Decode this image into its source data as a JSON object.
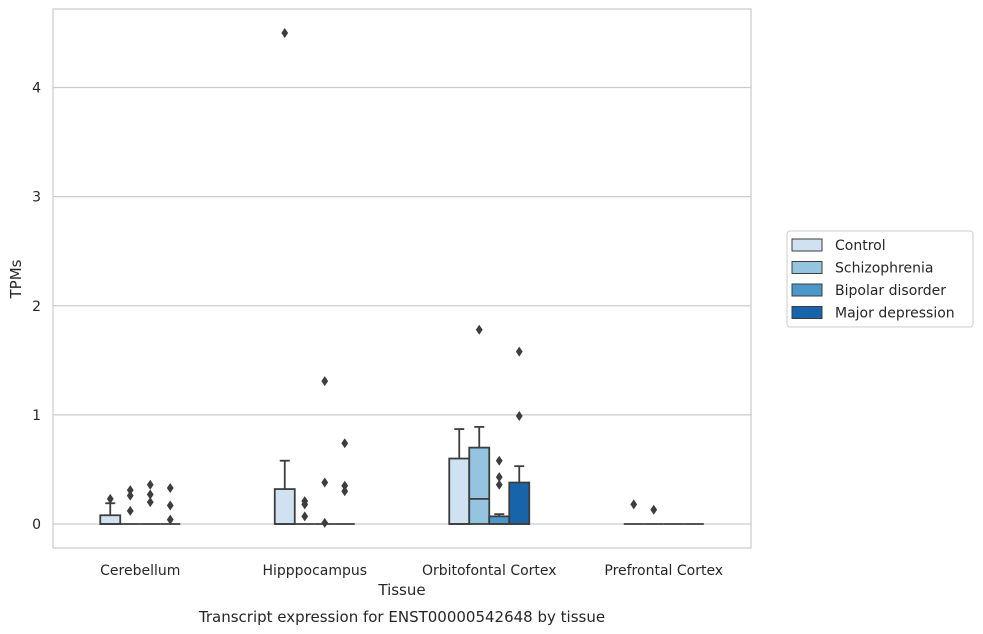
{
  "caption": "Transcript expression for ENST00000542648 by tissue",
  "chart_data": {
    "type": "box",
    "title": "",
    "xlabel": "Tissue",
    "ylabel": "TPMs",
    "ylim": [
      -0.22,
      4.72
    ],
    "yticks": [
      "0",
      "1",
      "2",
      "3",
      "4"
    ],
    "grid": true,
    "legend_position": "right",
    "categories": [
      "Cerebellum",
      "Hipppocampus",
      "Orbitofontal Cortex",
      "Prefrontal Cortex"
    ],
    "series": [
      {
        "name": "Control",
        "color": "#d0e1f2",
        "boxes": [
          {
            "q1": 0.0,
            "median": 0.0,
            "q3": 0.08,
            "whislo": 0.0,
            "whishi": 0.19,
            "fliers": [
              0.23
            ]
          },
          {
            "q1": 0.0,
            "median": 0.0,
            "q3": 0.32,
            "whislo": 0.0,
            "whishi": 0.58,
            "fliers": [
              4.5
            ]
          },
          {
            "q1": 0.0,
            "median": 0.0,
            "q3": 0.6,
            "whislo": 0.0,
            "whishi": 0.87,
            "fliers": []
          },
          {
            "q1": 0.0,
            "median": 0.0,
            "q3": 0.0,
            "whislo": 0.0,
            "whishi": 0.0,
            "fliers": [
              0.18
            ]
          }
        ]
      },
      {
        "name": "Schizophrenia",
        "color": "#94c4df",
        "boxes": [
          {
            "q1": 0.0,
            "median": 0.0,
            "q3": 0.0,
            "whislo": 0.0,
            "whishi": 0.0,
            "fliers": [
              0.12,
              0.26,
              0.31
            ]
          },
          {
            "q1": 0.0,
            "median": 0.0,
            "q3": 0.0,
            "whislo": 0.0,
            "whishi": 0.0,
            "fliers": [
              0.07,
              0.18,
              0.21
            ]
          },
          {
            "q1": 0.0,
            "median": 0.23,
            "q3": 0.7,
            "whislo": 0.0,
            "whishi": 0.89,
            "fliers": [
              1.78
            ]
          },
          {
            "q1": 0.0,
            "median": 0.0,
            "q3": 0.0,
            "whislo": 0.0,
            "whishi": 0.0,
            "fliers": [
              0.13
            ]
          }
        ]
      },
      {
        "name": "Bipolar disorder",
        "color": "#4a98c9",
        "boxes": [
          {
            "q1": 0.0,
            "median": 0.0,
            "q3": 0.0,
            "whislo": 0.0,
            "whishi": 0.0,
            "fliers": [
              0.2,
              0.27,
              0.36
            ]
          },
          {
            "q1": 0.0,
            "median": 0.0,
            "q3": 0.0,
            "whislo": 0.0,
            "whishi": 0.0,
            "fliers": [
              0.01,
              0.38,
              1.31
            ]
          },
          {
            "q1": 0.0,
            "median": 0.0,
            "q3": 0.07,
            "whislo": 0.0,
            "whishi": 0.09,
            "fliers": [
              0.36,
              0.43,
              0.58
            ]
          },
          {
            "q1": 0.0,
            "median": 0.0,
            "q3": 0.0,
            "whislo": 0.0,
            "whishi": 0.0,
            "fliers": []
          }
        ]
      },
      {
        "name": "Major depression",
        "color": "#1764ab",
        "boxes": [
          {
            "q1": 0.0,
            "median": 0.0,
            "q3": 0.0,
            "whislo": 0.0,
            "whishi": 0.0,
            "fliers": [
              0.04,
              0.17,
              0.33
            ]
          },
          {
            "q1": 0.0,
            "median": 0.0,
            "q3": 0.0,
            "whislo": 0.0,
            "whishi": 0.0,
            "fliers": [
              0.3,
              0.35,
              0.74
            ]
          },
          {
            "q1": 0.0,
            "median": 0.0,
            "q3": 0.38,
            "whislo": 0.0,
            "whishi": 0.53,
            "fliers": [
              0.99,
              1.58
            ]
          },
          {
            "q1": 0.0,
            "median": 0.0,
            "q3": 0.0,
            "whislo": 0.0,
            "whishi": 0.0,
            "fliers": []
          }
        ]
      }
    ]
  }
}
